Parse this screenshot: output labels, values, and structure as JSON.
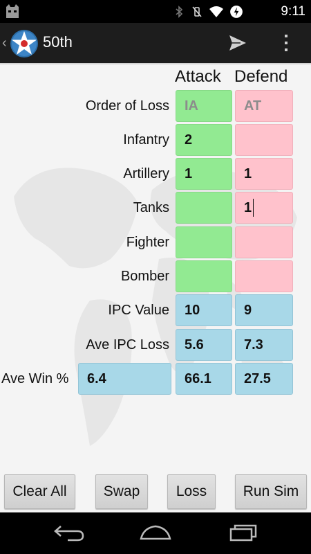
{
  "status_bar": {
    "time": "9:11",
    "icons": [
      "cyanogen-cat-icon",
      "bluetooth-icon",
      "vibrate-off-icon",
      "wifi-icon",
      "sync-icon"
    ]
  },
  "action_bar": {
    "title": "50th",
    "icons": [
      "back-chevron-icon",
      "app-logo-icon",
      "send-icon",
      "overflow-menu-icon"
    ]
  },
  "headers": {
    "attack": "Attack",
    "defend": "Defend"
  },
  "rows": [
    {
      "label": "Order of Loss",
      "attack": "IA",
      "defend": "AT",
      "attack_placeholder": true,
      "defend_placeholder": true
    },
    {
      "label": "Infantry",
      "attack": "2",
      "defend": ""
    },
    {
      "label": "Artillery",
      "attack": "1",
      "defend": "1"
    },
    {
      "label": "Tanks",
      "attack": "",
      "defend": "1"
    },
    {
      "label": "Fighter",
      "attack": "",
      "defend": ""
    },
    {
      "label": "Bomber",
      "attack": "",
      "defend": ""
    }
  ],
  "ipc_value": {
    "label": "IPC Value",
    "attack": "10",
    "defend": "9"
  },
  "ave_ipc_loss": {
    "label": "Ave IPC Loss",
    "attack": "5.6",
    "defend": "7.3"
  },
  "ave_win": {
    "label": "Ave Win %",
    "draw": "6.4",
    "attack": "66.1",
    "defend": "27.5"
  },
  "buttons": {
    "clear_all": "Clear All",
    "swap": "Swap",
    "loss": "Loss",
    "run_sim": "Run Sim"
  },
  "colors": {
    "attack": "#92ea92",
    "defend": "#ffc2cc",
    "result": "#a8d8e8",
    "action_bar": "#1d1d1d"
  },
  "nav_icons": [
    "back-icon",
    "home-icon",
    "recent-apps-icon"
  ]
}
